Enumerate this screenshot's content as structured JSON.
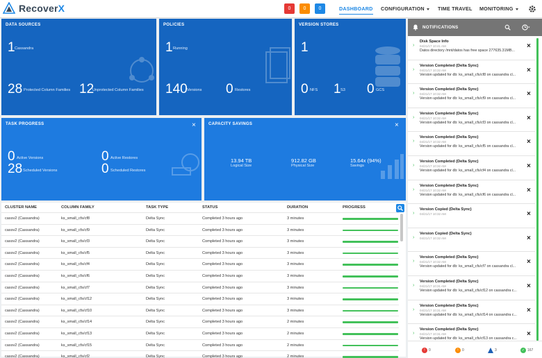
{
  "header": {
    "logo_text": "Recover",
    "logo_text_x": "X",
    "alerts": {
      "red": "0",
      "orange": "0",
      "blue": "0"
    },
    "nav": [
      "DASHBOARD",
      "CONFIGURATION",
      "TIME TRAVEL",
      "MONITORING"
    ]
  },
  "cards": {
    "data_sources": {
      "title": "DATA SOURCES",
      "count": "1",
      "count_label": "Cassandra",
      "protected": "28",
      "protected_label": "Protected Column Families",
      "unprotected": "12",
      "unprotected_label": "Unprotected Column Families"
    },
    "policies": {
      "title": "POLICIES",
      "running": "1",
      "running_label": "Running",
      "versions": "140",
      "versions_label": "Versions",
      "restores": "0",
      "restores_label": "Restores"
    },
    "version_stores": {
      "title": "VERSION STORES",
      "count": "1",
      "nfs": "0",
      "nfs_label": "NFS",
      "s3": "1",
      "s3_label": "S3",
      "gcs": "0",
      "gcs_label": "GCS"
    },
    "task_progress": {
      "title": "TASK PROGRESS",
      "active_versions": "0",
      "active_versions_label": "Active Versions",
      "active_restores": "0",
      "active_restores_label": "Active Restores",
      "scheduled_versions": "28",
      "scheduled_versions_label": "Scheduled Versions",
      "scheduled_restores": "0",
      "scheduled_restores_label": "Scheduled Restores"
    },
    "capacity_savings": {
      "title": "CAPACITY SAVINGS",
      "logical": "13.94 TB",
      "logical_label": "Logical Size",
      "physical": "912.82 GB",
      "physical_label": "Physical Size",
      "savings": "15.64x (94%)",
      "savings_label": "Savings"
    }
  },
  "table": {
    "headers": [
      "CLUSTER NAME",
      "COLUMN FAMILY",
      "TASK TYPE",
      "STATUS",
      "DURATION",
      "PROGRESS"
    ],
    "rows": [
      [
        "cassv2 (Cassandra)",
        "ks_small_cfs/cf8",
        "Delta Sync",
        "Completed 3 hours ago",
        "3 minutes",
        1.0
      ],
      [
        "cassv2 (Cassandra)",
        "ks_small_cfs/cf9",
        "Delta Sync",
        "Completed 3 hours ago",
        "3 minutes",
        1.0
      ],
      [
        "cassv2 (Cassandra)",
        "ks_small_cfs/cf3",
        "Delta Sync",
        "Completed 3 hours ago",
        "3 minutes",
        1.0
      ],
      [
        "cassv2 (Cassandra)",
        "ks_small_cfs/cf5",
        "Delta Sync",
        "Completed 3 hours ago",
        "3 minutes",
        1.0
      ],
      [
        "cassv2 (Cassandra)",
        "ks_small_cfs/cf4",
        "Delta Sync",
        "Completed 3 hours ago",
        "3 minutes",
        1.0
      ],
      [
        "cassv2 (Cassandra)",
        "ks_small_cfs/cf6",
        "Delta Sync",
        "Completed 3 hours ago",
        "3 minutes",
        1.0
      ],
      [
        "cassv2 (Cassandra)",
        "ks_small_cfs/cf7",
        "Delta Sync",
        "Completed 3 hours ago",
        "3 minutes",
        1.0
      ],
      [
        "cassv2 (Cassandra)",
        "ks_small_cfs/cf12",
        "Delta Sync",
        "Completed 3 hours ago",
        "3 minutes",
        1.0
      ],
      [
        "cassv2 (Cassandra)",
        "ks_small_cfs/cf10",
        "Delta Sync",
        "Completed 3 hours ago",
        "3 minutes",
        1.0
      ],
      [
        "cassv2 (Cassandra)",
        "ks_small_cfs/cf14",
        "Delta Sync",
        "Completed 3 hours ago",
        "2 minutes",
        1.0
      ],
      [
        "cassv2 (Cassandra)",
        "ks_small_cfs/cf13",
        "Delta Sync",
        "Completed 3 hours ago",
        "2 minutes",
        1.0
      ],
      [
        "cassv2 (Cassandra)",
        "ks_small_cfs/cf15",
        "Delta Sync",
        "Completed 3 hours ago",
        "2 minutes",
        1.0
      ],
      [
        "cassv2 (Cassandra)",
        "ks_small_cfs/cf2",
        "Delta Sync",
        "Completed 3 hours ago",
        "2 minutes",
        1.0
      ]
    ]
  },
  "notifications": {
    "title": "NOTIFICATIONS",
    "items": [
      {
        "title": "Disk Space Info",
        "time": "04/21/17 10:41 AM",
        "msg": "Datos directory /mnt/datos has free space 277635.31MB..."
      },
      {
        "title": "Version Completed (Delta Sync)",
        "time": "04/21/17 10:32 AM",
        "msg": "Version updated for db: ks_small_cfs/cf8 on cassandra cl..."
      },
      {
        "title": "Version Completed (Delta Sync)",
        "time": "04/21/17 10:32 AM",
        "msg": "Version updated for db: ks_small_cfs/cf9 on cassandra cl..."
      },
      {
        "title": "Version Completed (Delta Sync)",
        "time": "04/21/17 10:32 AM",
        "msg": "Version updated for db: ks_small_cfs/cf3 on cassandra cl..."
      },
      {
        "title": "Version Completed (Delta Sync)",
        "time": "04/21/17 10:32 AM",
        "msg": "Version updated for db: ks_small_cfs/cf5 on cassandra cl..."
      },
      {
        "title": "Version Completed (Delta Sync)",
        "time": "04/21/17 10:32 AM",
        "msg": "Version updated for db: ks_small_cfs/cf4 on cassandra cl..."
      },
      {
        "title": "Version Completed (Delta Sync)",
        "time": "04/21/17 10:32 AM",
        "msg": "Version updated for db: ks_small_cfs/cf6 on cassandra cl..."
      },
      {
        "title": "Version Copied (Delta Sync)",
        "time": "04/21/17 10:32 AM",
        "msg": ""
      },
      {
        "title": "Version Copied (Delta Sync)",
        "time": "04/21/17 10:32 AM",
        "msg": ""
      },
      {
        "title": "Version Completed (Delta Sync)",
        "time": "04/21/17 10:32 AM",
        "msg": "Version updated for db: ks_small_cfs/cf7 on cassandra cl..."
      },
      {
        "title": "Version Completed (Delta Sync)",
        "time": "04/21/17 10:31 AM",
        "msg": "Version updated for db: ks_small_cfs/cf12 on cassandra c..."
      },
      {
        "title": "Version Completed (Delta Sync)",
        "time": "04/21/17 10:31 AM",
        "msg": "Version updated for db: ks_small_cfs/cf14 on cassandra c..."
      },
      {
        "title": "Version Completed (Delta Sync)",
        "time": "04/21/17 10:31 AM",
        "msg": "Version updated for db: ks_small_cfs/cf13 on cassandra c..."
      }
    ],
    "footer": {
      "red": "0",
      "orange": "0",
      "blue": "3",
      "green": "167"
    }
  },
  "colors": {
    "dark_card": "#1565c0",
    "mid_card": "#1e7be0",
    "accent": "#1e88e5",
    "success": "#43c15a"
  }
}
